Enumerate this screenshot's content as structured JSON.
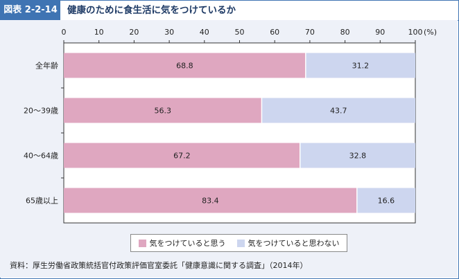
{
  "header": {
    "badge": "図表 2-2-14",
    "title": "健康のために食生活に気をつけているか"
  },
  "chart_data": {
    "type": "bar",
    "orientation": "horizontal",
    "stacked": true,
    "categories": [
      "全年齢",
      "20～39歳",
      "40～64歳",
      "65歳以上"
    ],
    "series": [
      {
        "name": "気をつけていると思う",
        "values": [
          68.8,
          56.3,
          67.2,
          83.4
        ],
        "color": "#dfa7c0"
      },
      {
        "name": "気をつけていると思わない",
        "values": [
          31.2,
          43.7,
          32.8,
          16.6
        ],
        "color": "#cdd6ef"
      }
    ],
    "xticks": [
      "0",
      "10",
      "20",
      "30",
      "40",
      "50",
      "60",
      "70",
      "80",
      "90",
      "100"
    ],
    "xunit": "(%)",
    "xlim": [
      0,
      100
    ],
    "legend_position": "bottom"
  },
  "source": "資料：厚生労働省政策統括官付政策評価官室委託「健康意識に関する調査」（2014年）"
}
